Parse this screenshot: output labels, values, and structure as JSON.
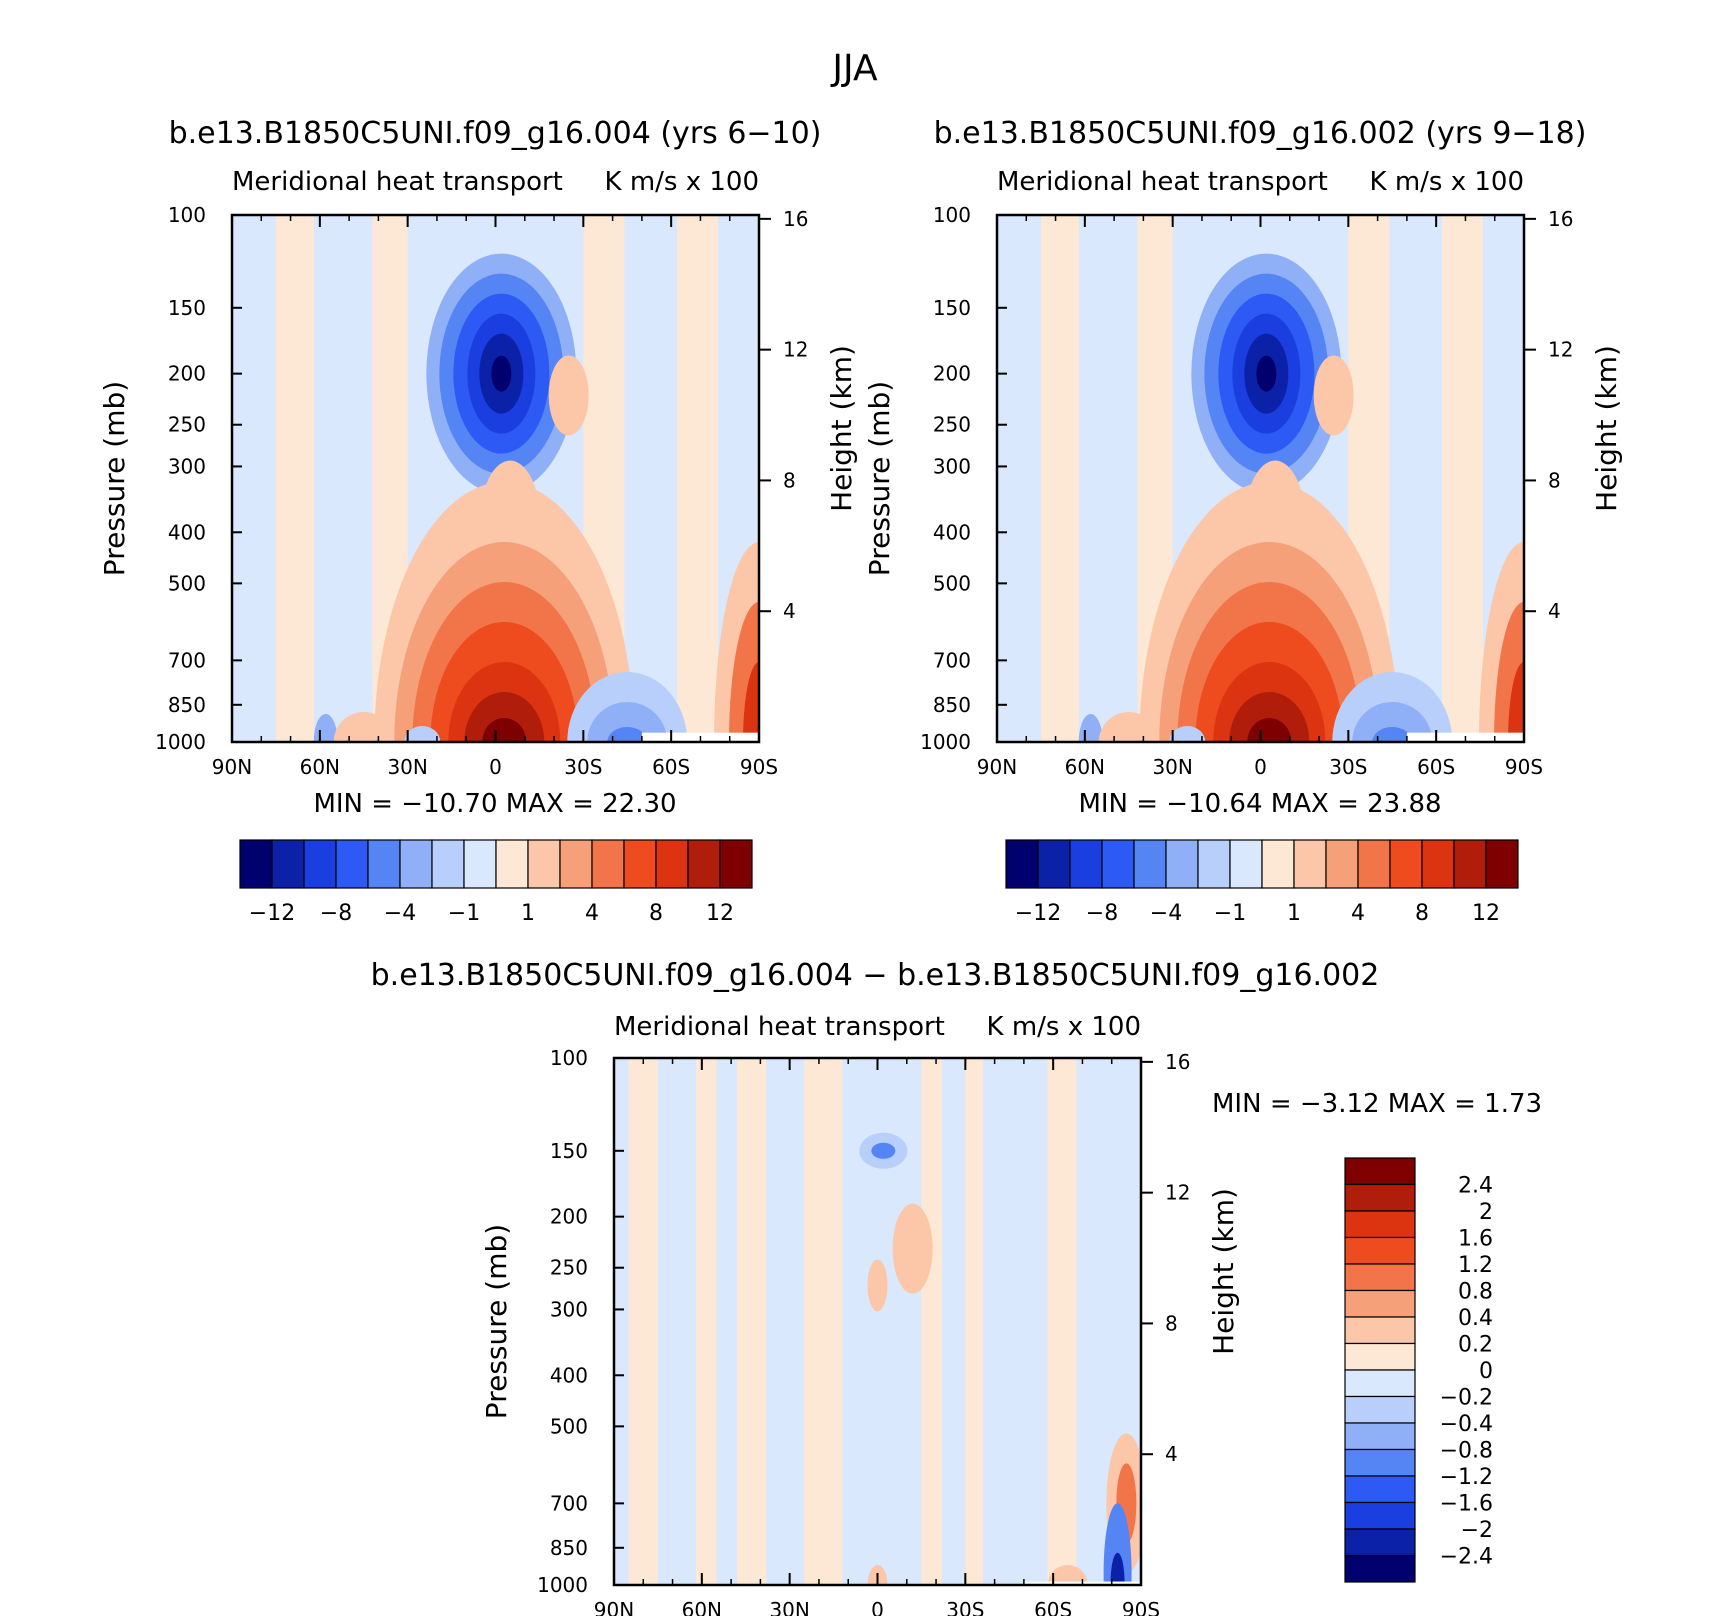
{
  "figure": {
    "title": "JJA"
  },
  "colors": {
    "main": [
      "#00006e",
      "#0b22a8",
      "#1b3ee0",
      "#2d5af5",
      "#5584f5",
      "#8fb0f7",
      "#b8cefb",
      "#d9e8fd",
      "#fde8d6",
      "#fbc7a8",
      "#f6a07a",
      "#f27549",
      "#ee4b1f",
      "#dc3411",
      "#b01d0b",
      "#7e0000"
    ],
    "diff": [
      "#00006e",
      "#0b22a8",
      "#1b3ee0",
      "#2d5af5",
      "#5584f5",
      "#8fb0f7",
      "#b8cefb",
      "#d9e8fd",
      "#fde8d6",
      "#fbc7a8",
      "#f6a07a",
      "#f27549",
      "#ee4b1f",
      "#dc3411",
      "#b01d0b",
      "#7e0000"
    ]
  },
  "chart_data": [
    {
      "type": "heatmap",
      "title": "b.e13.B1850C5UNI.f09_g16.004 (yrs 6−10)",
      "subtitle_left": "Meridional heat transport",
      "subtitle_right": "K m/s x 100",
      "xlabel": "",
      "ylabel": "Pressure (mb)",
      "y2label": "Height (km)",
      "x_ticks": [
        "90N",
        "60N",
        "30N",
        "0",
        "30S",
        "60S",
        "90S"
      ],
      "y_ticks": [
        "100",
        "150",
        "200",
        "250",
        "300",
        "400",
        "500",
        "700",
        "850",
        "1000"
      ],
      "y2_ticks": [
        "16",
        "12",
        "8",
        "4"
      ],
      "xlim": [
        90,
        -90
      ],
      "ylim": [
        1000,
        100
      ],
      "min_label": "MIN = −10.70",
      "max_label": "MAX = 22.30",
      "min": -10.7,
      "max": 22.3,
      "colorbar_labels": [
        "−12",
        "−8",
        "−4",
        "−1",
        "1",
        "4",
        "8",
        "12"
      ]
    },
    {
      "type": "heatmap",
      "title": "b.e13.B1850C5UNI.f09_g16.002 (yrs 9−18)",
      "subtitle_left": "Meridional heat transport",
      "subtitle_right": "K m/s x 100",
      "xlabel": "",
      "ylabel": "Pressure (mb)",
      "y2label": "Height (km)",
      "x_ticks": [
        "90N",
        "60N",
        "30N",
        "0",
        "30S",
        "60S",
        "90S"
      ],
      "y_ticks": [
        "100",
        "150",
        "200",
        "250",
        "300",
        "400",
        "500",
        "700",
        "850",
        "1000"
      ],
      "y2_ticks": [
        "16",
        "12",
        "8",
        "4"
      ],
      "xlim": [
        90,
        -90
      ],
      "ylim": [
        1000,
        100
      ],
      "min_label": "MIN = −10.64",
      "max_label": "MAX = 23.88",
      "min": -10.64,
      "max": 23.88,
      "colorbar_labels": [
        "−12",
        "−8",
        "−4",
        "−1",
        "1",
        "4",
        "8",
        "12"
      ]
    },
    {
      "type": "heatmap",
      "title": "b.e13.B1850C5UNI.f09_g16.004 − b.e13.B1850C5UNI.f09_g16.002",
      "subtitle_left": "Meridional heat transport",
      "subtitle_right": "K m/s x 100",
      "xlabel": "",
      "ylabel": "Pressure (mb)",
      "y2label": "Height (km)",
      "x_ticks": [
        "90N",
        "60N",
        "30N",
        "0",
        "30S",
        "60S",
        "90S"
      ],
      "y_ticks": [
        "100",
        "150",
        "200",
        "250",
        "300",
        "400",
        "500",
        "700",
        "850",
        "1000"
      ],
      "y2_ticks": [
        "16",
        "12",
        "8",
        "4"
      ],
      "xlim": [
        90,
        -90
      ],
      "ylim": [
        1000,
        100
      ],
      "min_label": "MIN = −3.12",
      "max_label": "MAX = 1.73",
      "min": -3.12,
      "max": 1.73,
      "colorbar_labels": [
        "2.4",
        "2",
        "1.6",
        "1.2",
        "0.8",
        "0.4",
        "0.2",
        "0",
        "−0.2",
        "−0.4",
        "−0.8",
        "−1.2",
        "−1.6",
        "−2",
        "−2.4"
      ]
    }
  ]
}
